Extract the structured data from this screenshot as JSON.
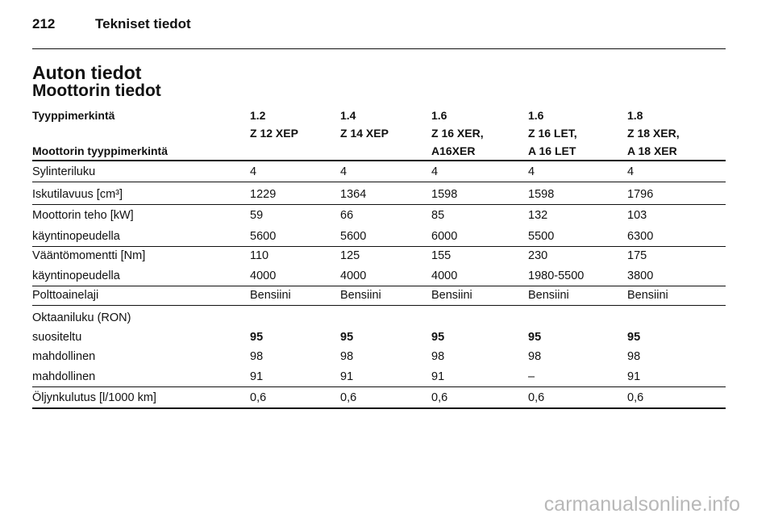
{
  "header": {
    "page_number": "212",
    "section": "Tekniset tiedot"
  },
  "title": "Auton tiedot",
  "subtitle": "Moottorin tiedot",
  "table": {
    "header_rows": [
      [
        "Tyyppimerkintä",
        "1.2",
        "1.4",
        "1.6",
        "1.6",
        "1.8"
      ],
      [
        "Moottorin tyyppimerkintä",
        "Z 12 XEP",
        "Z 14 XEP",
        "Z 16 XER,\nA16XER",
        "Z 16 LET,\nA 16 LET",
        "Z 18 XER,\nA 18 XER"
      ]
    ],
    "groups": [
      [
        [
          "Sylinteriluku",
          "4",
          "4",
          "4",
          "4",
          "4"
        ]
      ],
      [
        [
          "Iskutilavuus [cm³]",
          "1229",
          "1364",
          "1598",
          "1598",
          "1796"
        ]
      ],
      [
        [
          "Moottorin teho [kW]",
          "59",
          "66",
          "85",
          "132",
          "103"
        ],
        [
          "käyntinopeudella",
          "5600",
          "5600",
          "6000",
          "5500",
          "6300"
        ]
      ],
      [
        [
          "Vääntömomentti [Nm]",
          "110",
          "125",
          "155",
          "230",
          "175"
        ],
        [
          "käyntinopeudella",
          "4000",
          "4000",
          "4000",
          "1980-5500",
          "3800"
        ]
      ],
      [
        [
          "Polttoainelaji",
          "Bensiini",
          "Bensiini",
          "Bensiini",
          "Bensiini",
          "Bensiini"
        ]
      ],
      [
        [
          "Oktaaniluku (RON)"
        ],
        [
          "suositeltu",
          "95",
          "95",
          "95",
          "95",
          "95"
        ],
        [
          "mahdollinen",
          "98",
          "98",
          "98",
          "98",
          "98"
        ],
        [
          "mahdollinen",
          "91",
          "91",
          "91",
          "–",
          "91"
        ]
      ],
      [
        [
          "Öljynkulutus [l/1000 km]",
          "0,6",
          "0,6",
          "0,6",
          "0,6",
          "0,6"
        ]
      ]
    ]
  },
  "watermark": "carmanualsonline.info"
}
